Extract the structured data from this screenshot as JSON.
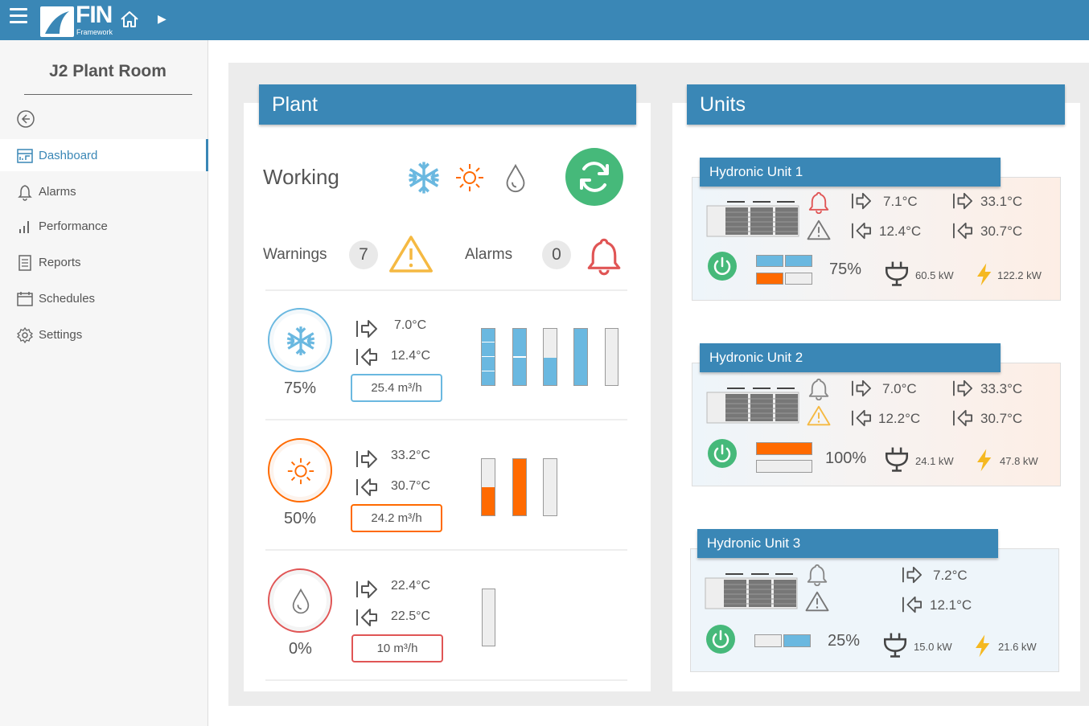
{
  "header": {
    "logo_text": "FIN",
    "logo_sub": "Framework"
  },
  "sidebar": {
    "title": "J2 Plant Room",
    "items": [
      {
        "label": "Dashboard",
        "icon": "dashboard-icon"
      },
      {
        "label": "Alarms",
        "icon": "bell-icon"
      },
      {
        "label": "Performance",
        "icon": "bar-chart-icon"
      },
      {
        "label": "Reports",
        "icon": "document-icon"
      },
      {
        "label": "Schedules",
        "icon": "calendar-icon"
      },
      {
        "label": "Settings",
        "icon": "gear-icon"
      }
    ]
  },
  "colors": {
    "accent": "#3a87b6",
    "green": "#46b97a",
    "orange": "#ff6a00",
    "blue": "#6ab8e0",
    "alarm_red": "#e05555",
    "warning_yellow": "#f5b942"
  },
  "plant": {
    "title": "Plant",
    "status": "Working",
    "warnings_label": "Warnings",
    "warnings_count": "7",
    "alarms_label": "Alarms",
    "alarms_count": "0",
    "rows": [
      {
        "mode": "cooling",
        "percent": "75%",
        "supply": "7.0°C",
        "return": "12.4°C",
        "flow": "25.4 m³/h"
      },
      {
        "mode": "heating",
        "percent": "50%",
        "supply": "33.2°C",
        "return": "30.7°C",
        "flow": "24.2 m³/h"
      },
      {
        "mode": "dhw",
        "percent": "0%",
        "supply": "22.4°C",
        "return": "22.5°C",
        "flow": "10 m³/h"
      }
    ]
  },
  "units": {
    "title": "Units",
    "list": [
      {
        "name": "Hydronic Unit 1",
        "cool_supply": "7.1°C",
        "cool_return": "12.4°C",
        "heat_supply": "33.1°C",
        "heat_return": "30.7°C",
        "percent": "75%",
        "thermal": "60.5 kW",
        "electric": "122.2 kW"
      },
      {
        "name": "Hydronic Unit 2",
        "cool_supply": "7.0°C",
        "cool_return": "12.2°C",
        "heat_supply": "33.3°C",
        "heat_return": "30.7°C",
        "percent": "100%",
        "thermal": "24.1 kW",
        "electric": "47.8 kW"
      },
      {
        "name": "Hydronic Unit 3",
        "cool_supply": "7.2°C",
        "cool_return": "12.1°C",
        "percent": "25%",
        "thermal": "15.0 kW",
        "electric": "21.6 kW"
      }
    ]
  }
}
